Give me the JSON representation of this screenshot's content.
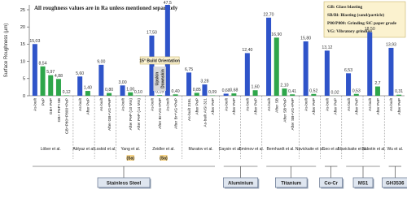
{
  "chart_data": {
    "type": "bar",
    "y_label": "Surface Roughness (µm)",
    "note": "All roughness values are in Ra unless mentioned separately",
    "legend_lines": [
      "GB: Glass blasting",
      "SB/Bl: Blasting (sand/particle)",
      "P80/P800: Grinding SiC paper grade",
      "VG: Vibratory grinding"
    ],
    "annotations": {
      "orientation": "15° Build Orientation",
      "upskin": "Upskin",
      "downskin": "Downskin"
    },
    "ylim": [
      0,
      25
    ],
    "yticks": [
      0,
      5,
      10,
      15,
      20,
      25
    ],
    "materials": [
      {
        "name": "Stainless Steel",
        "studies": [
          {
            "name": "Löber et al.",
            "categories": [
              "As-built",
              "PeP",
              "GB+ PeP",
              "GB+ PeP+SB",
              "GB+P80+P800+PeP"
            ],
            "values": [
              15.03,
              8.54,
              5.97,
              4.88,
              0.12
            ],
            "value_labels": [
              "15,03",
              "8,54",
              "5,97",
              "4,88",
              "0,12"
            ],
            "colors": [
              "#2f54c9",
              "#2ea64a",
              "#2ea64a",
              "#2ea64a",
              "#2ea64a"
            ]
          },
          {
            "name": "Ablyaz et al.",
            "categories": [
              "As-built",
              "After PeP"
            ],
            "values": [
              5.6,
              1.4
            ],
            "value_labels": [
              "5,60",
              "1,40"
            ],
            "colors": [
              "#2f54c9",
              "#2ea64a"
            ]
          },
          {
            "name": "Łoskid et al.",
            "categories": [
              "As-built",
              "After GB+VG+PeP"
            ],
            "values": [
              9.0,
              0.8
            ],
            "value_labels": [
              "9,00",
              "0,80"
            ],
            "colors": [
              "#2f54c9",
              "#2ea64a"
            ]
          },
          {
            "name": "Yang et al.",
            "note": "(Sa)",
            "categories": [
              "As-built",
              "After PeP (10 Min)",
              "After PeP (14 Min)"
            ],
            "values": [
              3.0,
              1.0,
              0.1
            ],
            "value_labels": [
              "3,00",
              "1,00",
              "0,10"
            ],
            "colors": [
              "#2f54c9",
              "#2ea64a",
              "#2ea64a"
            ]
          },
          {
            "name": "Zeidler et al.",
            "note": "(Sa)",
            "categories": [
              "As-built",
              "After Br+VG+PeP",
              "As-built",
              "After Br+VG+PeP"
            ],
            "values": [
              17.5,
              0.19,
              47.5,
              0.4
            ],
            "value_labels": [
              "17,50",
              "0,19",
              "47,5",
              "0,40"
            ],
            "colors": [
              "#2f54c9",
              "#2ea64a",
              "#2f54c9",
              "#2ea64a"
            ]
          },
          {
            "name": "Muratov et al.",
            "categories": [
              "As-built 316L",
              "After PeP",
              "As-built AISI 321",
              "After PeP"
            ],
            "values": [
              6.75,
              0.85,
              3.28,
              0.09
            ],
            "value_labels": [
              "6,75",
              "0,85",
              "3,28",
              "0,09"
            ],
            "colors": [
              "#2f54c9",
              "#2ea64a",
              "#2f54c9",
              "#2ea64a"
            ]
          }
        ]
      },
      {
        "name": "Aluminium",
        "studies": [
          {
            "name": "Gaysin et al.",
            "categories": [
              "As-built",
              "After PeP"
            ],
            "values": [
              0.6,
              0.68
            ],
            "value_labels": [
              "0,60",
              "0,68"
            ],
            "colors": [
              "#2f54c9",
              "#2ea64a"
            ]
          },
          {
            "name": "Smirnov et al.",
            "categories": [
              "As-built",
              "After PeP"
            ],
            "values": [
              12.4,
              1.6
            ],
            "value_labels": [
              "12,40",
              "1,60"
            ],
            "colors": [
              "#2f54c9",
              "#2ea64a"
            ]
          }
        ]
      },
      {
        "name": "Titanium",
        "studies": [
          {
            "name": "Bernhardt et al.",
            "categories": [
              "As-built",
              "After SB",
              "After SB+PeP",
              "After SB+VG+PeP"
            ],
            "values": [
              22.7,
              16.9,
              2.1,
              0.41
            ],
            "value_labels": [
              "22,70",
              "16,90",
              "2,10",
              "0,41"
            ],
            "colors": [
              "#2f54c9",
              "#2ea64a",
              "#2ea64a",
              "#2ea64a"
            ]
          },
          {
            "name": "Navickaite et al.",
            "categories": [
              "As-built",
              "After PeP"
            ],
            "values": [
              15.8,
              0.52
            ],
            "value_labels": [
              "15,80",
              "0,52"
            ],
            "colors": [
              "#2f54c9",
              "#2ea64a"
            ]
          }
        ]
      },
      {
        "name": "Co-Cr",
        "studies": [
          {
            "name": "Seo et al.",
            "categories": [
              "As-built",
              "After PeP"
            ],
            "values": [
              13.12,
              0.02
            ],
            "value_labels": [
              "13,12",
              "0,02"
            ],
            "colors": [
              "#2f54c9",
              "#2ea64a"
            ]
          }
        ]
      },
      {
        "name": "MS1",
        "studies": [
          {
            "name": "Navickaite et al.",
            "categories": [
              "As-built",
              "After PeP"
            ],
            "values": [
              6.53,
              0.53
            ],
            "value_labels": [
              "6,53",
              "0,53"
            ],
            "colors": [
              "#2f54c9",
              "#2ea64a"
            ]
          },
          {
            "name": "Sabotin et al.",
            "categories": [
              "As-built",
              "After PeP"
            ],
            "values": [
              18.5,
              2.7
            ],
            "value_labels": [
              "18,50",
              "2,7"
            ],
            "colors": [
              "#2f54c9",
              "#2ea64a"
            ]
          }
        ]
      },
      {
        "name": "GH3536",
        "studies": [
          {
            "name": "Wu et al.",
            "categories": [
              "As-built",
              "After PeP"
            ],
            "values": [
              13.93,
              0.31
            ],
            "value_labels": [
              "13,93",
              "0,31"
            ],
            "colors": [
              "#2f54c9",
              "#2ea64a"
            ]
          }
        ]
      }
    ]
  }
}
